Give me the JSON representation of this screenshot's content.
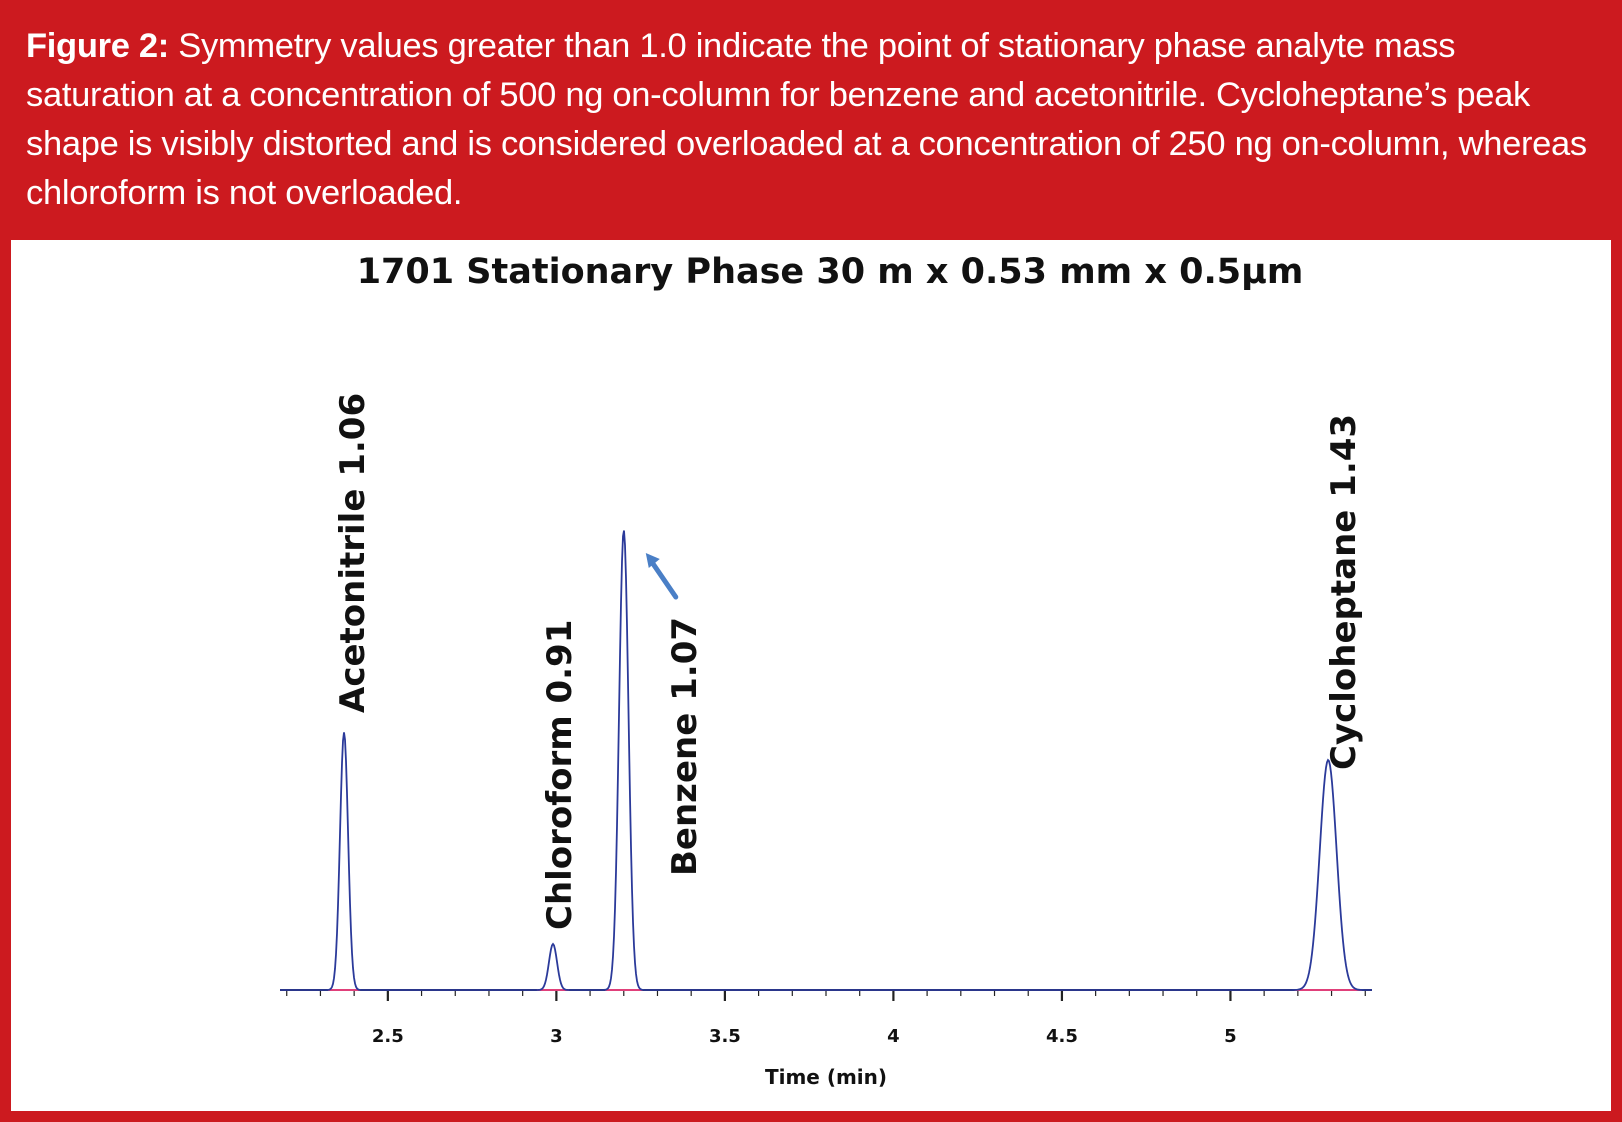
{
  "caption": {
    "label": "Figure 2:",
    "text": " Symmetry values greater than 1.0 indicate the point of stationary phase analyte mass saturation at a concentration of 500 ng on-column for benzene and acetonitrile. Cycloheptane’s peak shape is visibly distorted and is considered overloaded at a concentration of 250 ng on-column, whereas chloroform is not overloaded."
  },
  "colors": {
    "frame": "#cc1a1f",
    "trace": "#2b3a9a",
    "baseline": "#e0407a",
    "arrow": "#4a7fc6"
  },
  "chart_data": {
    "type": "line",
    "title": "1701 Stationary Phase 30 m x 0.53 mm x 0.5μm",
    "xlabel": "Time (min)",
    "ylabel": "",
    "xlim": [
      2.18,
      5.42
    ],
    "ylim": [
      0,
      1.0
    ],
    "x_ticks": [
      "2.5",
      "3",
      "3.5",
      "4",
      "4.5",
      "5"
    ],
    "series": [
      {
        "peaks": [
          {
            "label": "Acetonitrile 1.06",
            "x": 2.37,
            "height": 0.56,
            "width": 0.012
          },
          {
            "label": "Chloroform 0.91",
            "x": 2.99,
            "height": 0.1,
            "width": 0.012
          },
          {
            "label": "Benzene 1.07",
            "x": 3.2,
            "height": 1.0,
            "width": 0.014
          },
          {
            "label": "Cycloheptane 1.43",
            "x": 5.29,
            "height": 0.5,
            "width": 0.025
          }
        ]
      }
    ],
    "grid": false,
    "legend": "none",
    "annotations": [
      {
        "type": "arrow",
        "target": "Benzene 1.07"
      }
    ]
  }
}
